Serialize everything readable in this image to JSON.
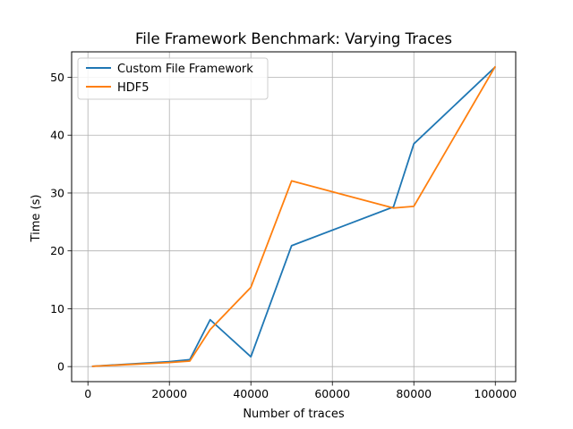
{
  "chart_data": {
    "type": "line",
    "title": "File Framework Benchmark: Varying Traces",
    "xlabel": "Number of traces",
    "ylabel": "Time (s)",
    "xlim": [
      -4000,
      105000
    ],
    "ylim": [
      -2.6,
      54.4
    ],
    "xticks": [
      0,
      20000,
      40000,
      60000,
      80000,
      100000
    ],
    "xtick_labels": [
      "0",
      "20000",
      "40000",
      "60000",
      "80000",
      "100000"
    ],
    "yticks": [
      0,
      10,
      20,
      30,
      40,
      50
    ],
    "ytick_labels": [
      "0",
      "10",
      "20",
      "30",
      "40",
      "50"
    ],
    "grid": true,
    "legend_position": "upper-left",
    "series": [
      {
        "name": "Custom File Framework",
        "color": "#1f77b4",
        "x": [
          1000,
          20000,
          25000,
          30000,
          40000,
          50000,
          75000,
          80000,
          100000
        ],
        "y": [
          0.05,
          0.85,
          1.2,
          8.1,
          1.7,
          20.9,
          27.6,
          38.5,
          51.8
        ]
      },
      {
        "name": "HDF5",
        "color": "#ff7f0e",
        "x": [
          1000,
          20000,
          25000,
          30000,
          40000,
          50000,
          75000,
          80000,
          100000
        ],
        "y": [
          0.05,
          0.7,
          0.95,
          6.4,
          13.7,
          32.1,
          27.4,
          27.7,
          51.9
        ]
      }
    ]
  }
}
